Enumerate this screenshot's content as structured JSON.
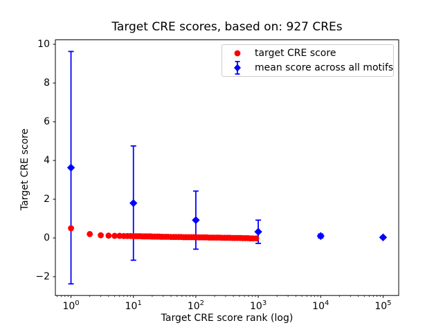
{
  "figure": {
    "title": "Target CRE scores, based on: 927 CREs",
    "xlabel": "Target CRE score rank (log)",
    "ylabel": "Target CRE score"
  },
  "legend": {
    "entries": [
      {
        "label": "target CRE score",
        "marker": "circle",
        "color": "#ff0000"
      },
      {
        "label": "mean score across all motifs",
        "marker": "diamond-errorbar",
        "color": "#0000ff"
      }
    ],
    "border_color": "#cccccc"
  },
  "chart_data": {
    "type": "scatter",
    "title": "Target CRE scores, based on: 927 CREs",
    "xlabel": "Target CRE score rank (log)",
    "ylabel": "Target CRE score",
    "n_cres": 927,
    "x_scale": "log",
    "xlim": [
      0.562,
      177828
    ],
    "ylim": [
      -2.97,
      10.23
    ],
    "xticks": [
      1,
      10,
      100,
      1000,
      10000,
      100000
    ],
    "xtick_labels": [
      "10^0",
      "10^1",
      "10^2",
      "10^3",
      "10^4",
      "10^5"
    ],
    "yticks": [
      -2,
      0,
      2,
      4,
      6,
      8,
      10
    ],
    "grid": false,
    "legend_position": "upper right",
    "series": [
      {
        "name": "mean score across all motifs",
        "marker": "diamond",
        "color": "#0000ff",
        "x": [
          1,
          10,
          100,
          1000,
          10000,
          100000
        ],
        "y": [
          3.63,
          1.8,
          0.92,
          0.32,
          0.1,
          0.03
        ],
        "yerr": [
          6.0,
          2.95,
          1.5,
          0.6,
          0.1,
          0.05
        ]
      },
      {
        "name": "target CRE score",
        "marker": "circle",
        "color": "#ff0000",
        "points": [
          [
            1,
            0.5
          ],
          [
            2,
            0.2
          ],
          [
            3,
            0.14
          ],
          [
            4,
            0.12
          ],
          [
            5,
            0.11
          ],
          [
            6,
            0.11
          ],
          [
            7,
            0.1
          ],
          [
            8,
            0.1
          ],
          [
            9,
            0.1
          ],
          [
            10,
            0.09
          ],
          [
            11,
            0.09
          ],
          [
            12,
            0.09
          ],
          [
            13,
            0.09
          ],
          [
            14,
            0.08
          ],
          [
            15,
            0.08
          ],
          [
            16,
            0.08
          ],
          [
            17,
            0.08
          ],
          [
            18,
            0.08
          ],
          [
            19,
            0.08
          ],
          [
            20,
            0.07
          ],
          [
            22,
            0.07
          ],
          [
            24,
            0.07
          ],
          [
            26,
            0.07
          ],
          [
            28,
            0.06
          ],
          [
            30,
            0.06
          ],
          [
            33,
            0.06
          ],
          [
            36,
            0.06
          ],
          [
            40,
            0.05
          ],
          [
            44,
            0.05
          ],
          [
            48,
            0.05
          ],
          [
            53,
            0.05
          ],
          [
            58,
            0.05
          ],
          [
            64,
            0.04
          ],
          [
            70,
            0.04
          ],
          [
            77,
            0.04
          ],
          [
            85,
            0.04
          ],
          [
            93,
            0.04
          ],
          [
            102,
            0.03
          ],
          [
            112,
            0.03
          ],
          [
            123,
            0.03
          ],
          [
            135,
            0.03
          ],
          [
            148,
            0.03
          ],
          [
            163,
            0.02
          ],
          [
            179,
            0.02
          ],
          [
            197,
            0.02
          ],
          [
            217,
            0.02
          ],
          [
            239,
            0.02
          ],
          [
            263,
            0.01
          ],
          [
            289,
            0.01
          ],
          [
            318,
            0.01
          ],
          [
            350,
            0.01
          ],
          [
            385,
            0.0
          ],
          [
            424,
            0.0
          ],
          [
            466,
            0.0
          ],
          [
            513,
            0.0
          ],
          [
            564,
            -0.01
          ],
          [
            620,
            -0.01
          ],
          [
            682,
            -0.01
          ],
          [
            750,
            -0.02
          ],
          [
            825,
            -0.02
          ],
          [
            927,
            -0.02
          ]
        ]
      }
    ]
  }
}
